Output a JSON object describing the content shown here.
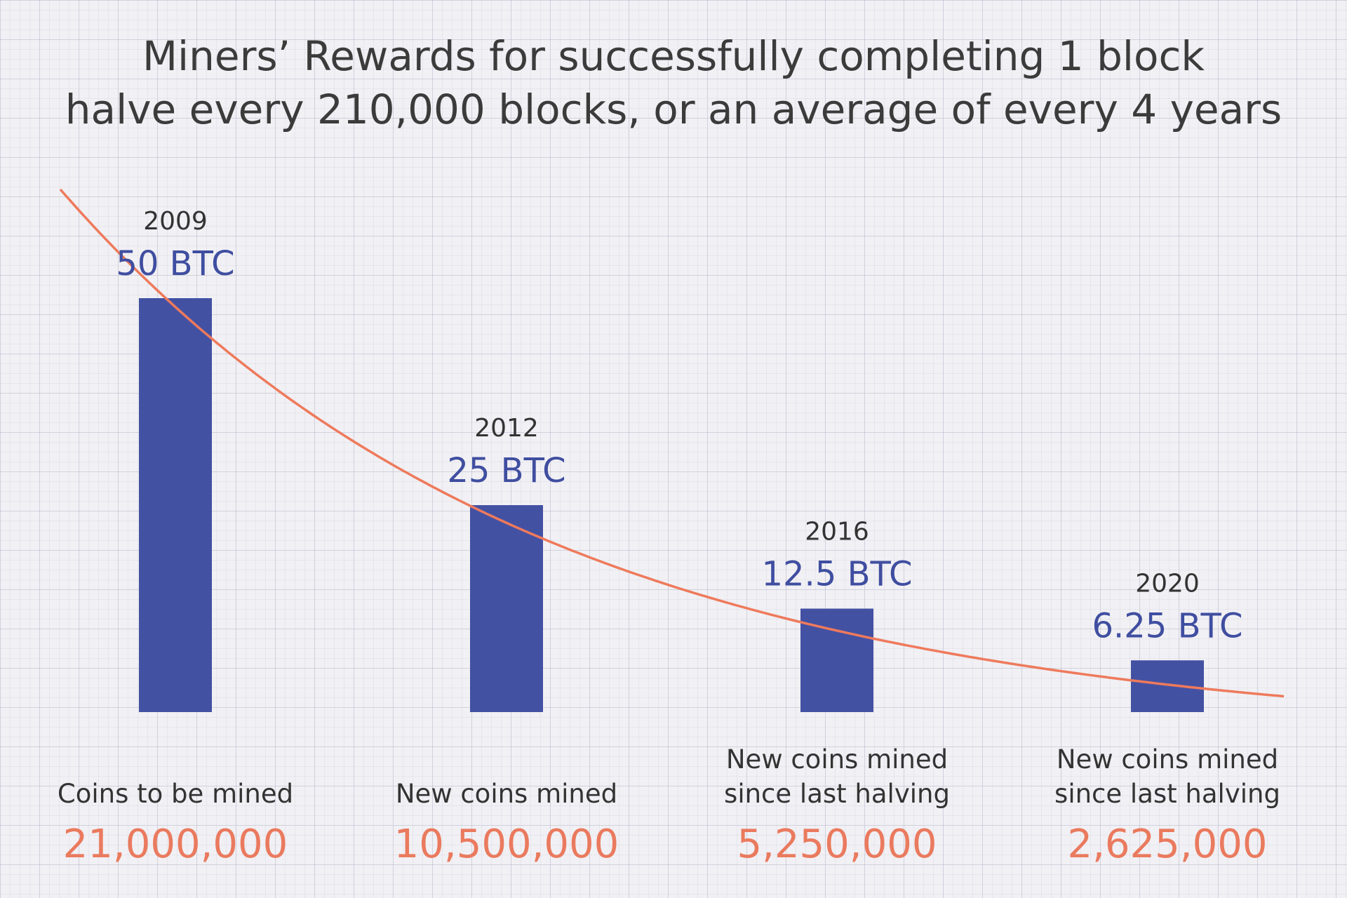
{
  "title_lines": [
    "Miners’ Rewards for successfully completing 1 block",
    "halve every 210,000 blocks, or an average of every 4 years"
  ],
  "colors": {
    "bar": "#4351a3",
    "trend_line": "#ee7a5c",
    "reward_label": "#3f4ea0",
    "coins_label": "#ea7a5e"
  },
  "chart_data": {
    "type": "bar",
    "categories": [
      "2009",
      "2012",
      "2016",
      "2020"
    ],
    "values": [
      50,
      25,
      12.5,
      6.25
    ],
    "value_labels": [
      "50 BTC",
      "25 BTC",
      "12.5 BTC",
      "6.25 BTC"
    ],
    "captions": [
      [
        "Coins to be mined"
      ],
      [
        "New coins mined"
      ],
      [
        "New coins mined",
        "since last halving"
      ],
      [
        "New coins mined",
        "since last halving"
      ]
    ],
    "coins": [
      "21,000,000",
      "10,500,000",
      "5,250,000",
      "2,625,000"
    ],
    "trend_line": true,
    "grid": true,
    "ylim": [
      0,
      50
    ]
  }
}
